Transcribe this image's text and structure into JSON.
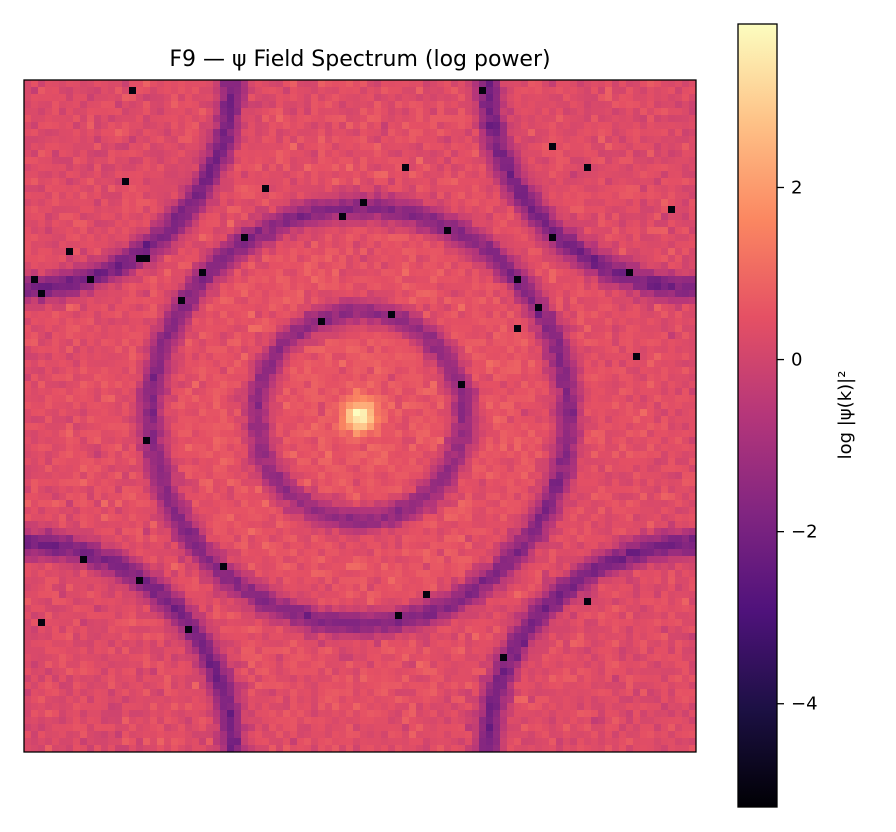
{
  "chart_data": {
    "type": "heatmap",
    "title": "F9 — ψ Field Spectrum (log power)",
    "colormap": "magma",
    "grid": false,
    "axes_ticks_visible": false,
    "image_grid": {
      "rows": 96,
      "cols": 96
    },
    "structure": {
      "central_peak": {
        "log_power": 3.6
      },
      "background_level": {
        "log_power": 0.2
      },
      "noise_amplitude": 0.5,
      "rings": [
        {
          "radius_fraction_of_half_width": 0.31,
          "log_power": -1.8
        },
        {
          "radius_fraction_of_half_width": 0.62,
          "log_power": -2.0
        }
      ],
      "corner_arcs": {
        "radius_fraction_of_half_width": 0.62,
        "log_power": -2.2
      },
      "dropout_pixel_log_power": -5.0
    },
    "colorbar": {
      "label": "log |ψ(k)|²",
      "range": [
        -5.2,
        3.9
      ],
      "ticks": [
        {
          "value": 2,
          "label": "2"
        },
        {
          "value": 0,
          "label": "0"
        },
        {
          "value": -2,
          "label": "−2"
        },
        {
          "value": -4,
          "label": "−4"
        }
      ]
    }
  }
}
